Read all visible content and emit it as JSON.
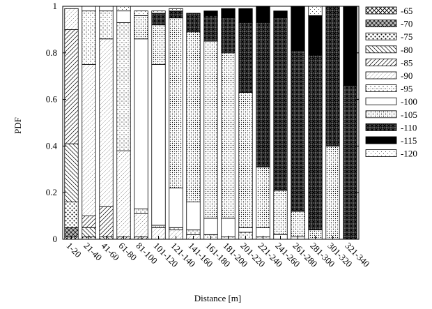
{
  "chart_data": {
    "type": "bar",
    "stacked": true,
    "xlabel": "Distance [m]",
    "ylabel": "PDF",
    "ylim": [
      0,
      1
    ],
    "yticks": [
      "0",
      "0.2",
      "0.4",
      "0.6",
      "0.8",
      "1"
    ],
    "categories": [
      "1-20",
      "21-40",
      "41-60",
      "61-80",
      "81-100",
      "101-120",
      "121-140",
      "141-160",
      "161-180",
      "181-200",
      "201-220",
      "221-240",
      "241-260",
      "261-280",
      "281-300",
      "301-320",
      "321-340"
    ],
    "legend_position": "right",
    "series": [
      {
        "name": "-65",
        "pattern": "crosshatch-dense",
        "values": [
          0.01,
          0,
          0,
          0,
          0,
          0,
          0,
          0,
          0,
          0,
          0,
          0,
          0,
          0,
          0,
          0,
          0
        ]
      },
      {
        "name": "-70",
        "pattern": "diamond-dense",
        "values": [
          0.04,
          0,
          0,
          0,
          0,
          0,
          0,
          0,
          0,
          0,
          0,
          0,
          0,
          0,
          0,
          0,
          0
        ]
      },
      {
        "name": "-75",
        "pattern": "dots-dense",
        "values": [
          0.11,
          0.01,
          0,
          0,
          0,
          0,
          0,
          0,
          0,
          0,
          0,
          0,
          0,
          0,
          0,
          0,
          0
        ]
      },
      {
        "name": "-80",
        "pattern": "diag-right-dense",
        "values": [
          0.25,
          0.04,
          0.01,
          0,
          0,
          0,
          0,
          0,
          0,
          0,
          0,
          0,
          0,
          0,
          0,
          0,
          0
        ]
      },
      {
        "name": "-85",
        "pattern": "diag-left",
        "values": [
          0.49,
          0.05,
          0.13,
          0.01,
          0.01,
          0,
          0,
          0,
          0,
          0,
          0,
          0,
          0,
          0,
          0,
          0,
          0
        ]
      },
      {
        "name": "-90",
        "pattern": "diag-sparse",
        "values": [
          0.09,
          0.65,
          0.72,
          0.37,
          0.1,
          0.05,
          0.04,
          0.02,
          0,
          0,
          0,
          0,
          0,
          0,
          0,
          0,
          0
        ]
      },
      {
        "name": "-95",
        "pattern": "dots-sparse",
        "values": [
          0,
          0.23,
          0.12,
          0.55,
          0.02,
          0.01,
          0.01,
          0.02,
          0.02,
          0.01,
          0.03,
          0.01,
          0,
          0,
          0,
          0,
          0
        ]
      },
      {
        "name": "-100",
        "pattern": "white",
        "values": [
          0,
          0.02,
          0.1,
          0.05,
          0.73,
          0.69,
          0.17,
          0.12,
          0.07,
          0.08,
          0.02,
          0.04,
          0.02,
          0.01,
          0,
          0,
          0
        ]
      },
      {
        "name": "-105",
        "pattern": "dots-small",
        "values": [
          0,
          0,
          0,
          0,
          0.1,
          0.17,
          0.73,
          0.73,
          0.76,
          0.71,
          0.58,
          0.26,
          0.19,
          0.11,
          0.04,
          0.4,
          0
        ]
      },
      {
        "name": "-110",
        "pattern": "cross-dark",
        "values": [
          0,
          0,
          0,
          0,
          0,
          0.05,
          0.03,
          0.08,
          0.11,
          0.15,
          0.3,
          0.62,
          0.74,
          0.69,
          0.75,
          0.6,
          0.66
        ]
      },
      {
        "name": "-115",
        "pattern": "black",
        "values": [
          0,
          0,
          0,
          0,
          0,
          0,
          0,
          0,
          0.02,
          0.04,
          0.06,
          0.07,
          0.03,
          0.19,
          0.17,
          0,
          0.34
        ]
      },
      {
        "name": "-120",
        "pattern": "dots-light",
        "values": [
          0,
          0,
          0.01,
          0.02,
          0.02,
          0.01,
          0.01,
          0,
          0,
          0,
          0,
          0,
          0,
          0,
          0.04,
          0,
          0
        ]
      }
    ]
  }
}
